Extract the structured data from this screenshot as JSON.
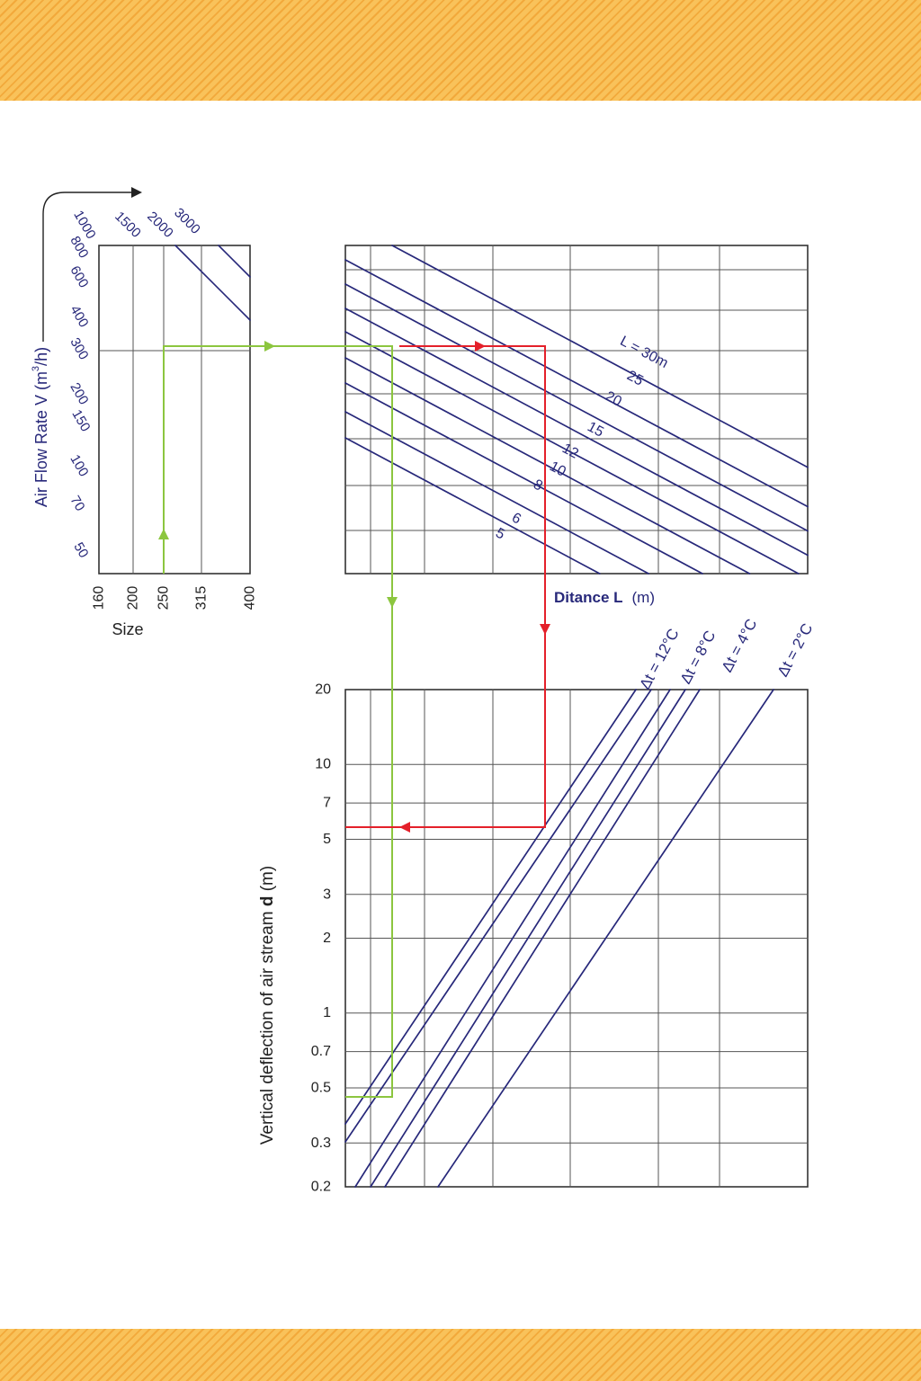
{
  "colors": {
    "band": "#f9c25a",
    "band_stripe": "#f2a93b",
    "grid": "#555555",
    "curve": "#27287a",
    "label": "#27287a",
    "axis_text": "#222222",
    "green_path": "#8cc63f",
    "red_path": "#e4202a"
  },
  "chart_data": [
    {
      "type": "line",
      "panel": "size-airflow",
      "ylabel_main": "Air Flow Rate  V (m",
      "ylabel_sup": "3",
      "ylabel_tail": "/h)",
      "xlabel": "Size",
      "x_ticks": [
        "160",
        "200",
        "250",
        "315",
        "400"
      ],
      "y_ticks": [
        "50",
        "70",
        "100",
        "150",
        "200",
        "300",
        "400",
        "600",
        "800",
        "1000"
      ],
      "top_ticks": [
        "1500",
        "2000",
        "3000"
      ],
      "series_count": 12
    },
    {
      "type": "line",
      "panel": "distance",
      "xlabel_main": "Ditance L",
      "xlabel_unit": "(m)",
      "series": [
        {
          "name": "5"
        },
        {
          "name": "6"
        },
        {
          "name": "8"
        },
        {
          "name": "10"
        },
        {
          "name": "12"
        },
        {
          "name": "15"
        },
        {
          "name": "20"
        },
        {
          "name": "25"
        },
        {
          "name": "L = 30m"
        }
      ]
    },
    {
      "type": "line",
      "panel": "deflection",
      "ylabel_main": "Vertical deflection of air stream",
      "ylabel_bold": "d",
      "ylabel_unit": "(m)",
      "y_scale": "log",
      "ylim": [
        0.2,
        20
      ],
      "y_ticks": [
        "20",
        "10",
        "7",
        "5",
        "3",
        "2",
        "1",
        "0.7",
        "0.5",
        "0.3",
        "0.2"
      ],
      "series": [
        {
          "name": "Δt = 12°C"
        },
        {
          "name": "Δt = 8°C"
        },
        {
          "name": "Δt = 4°C"
        },
        {
          "name": "Δt = 2°C"
        }
      ]
    }
  ]
}
